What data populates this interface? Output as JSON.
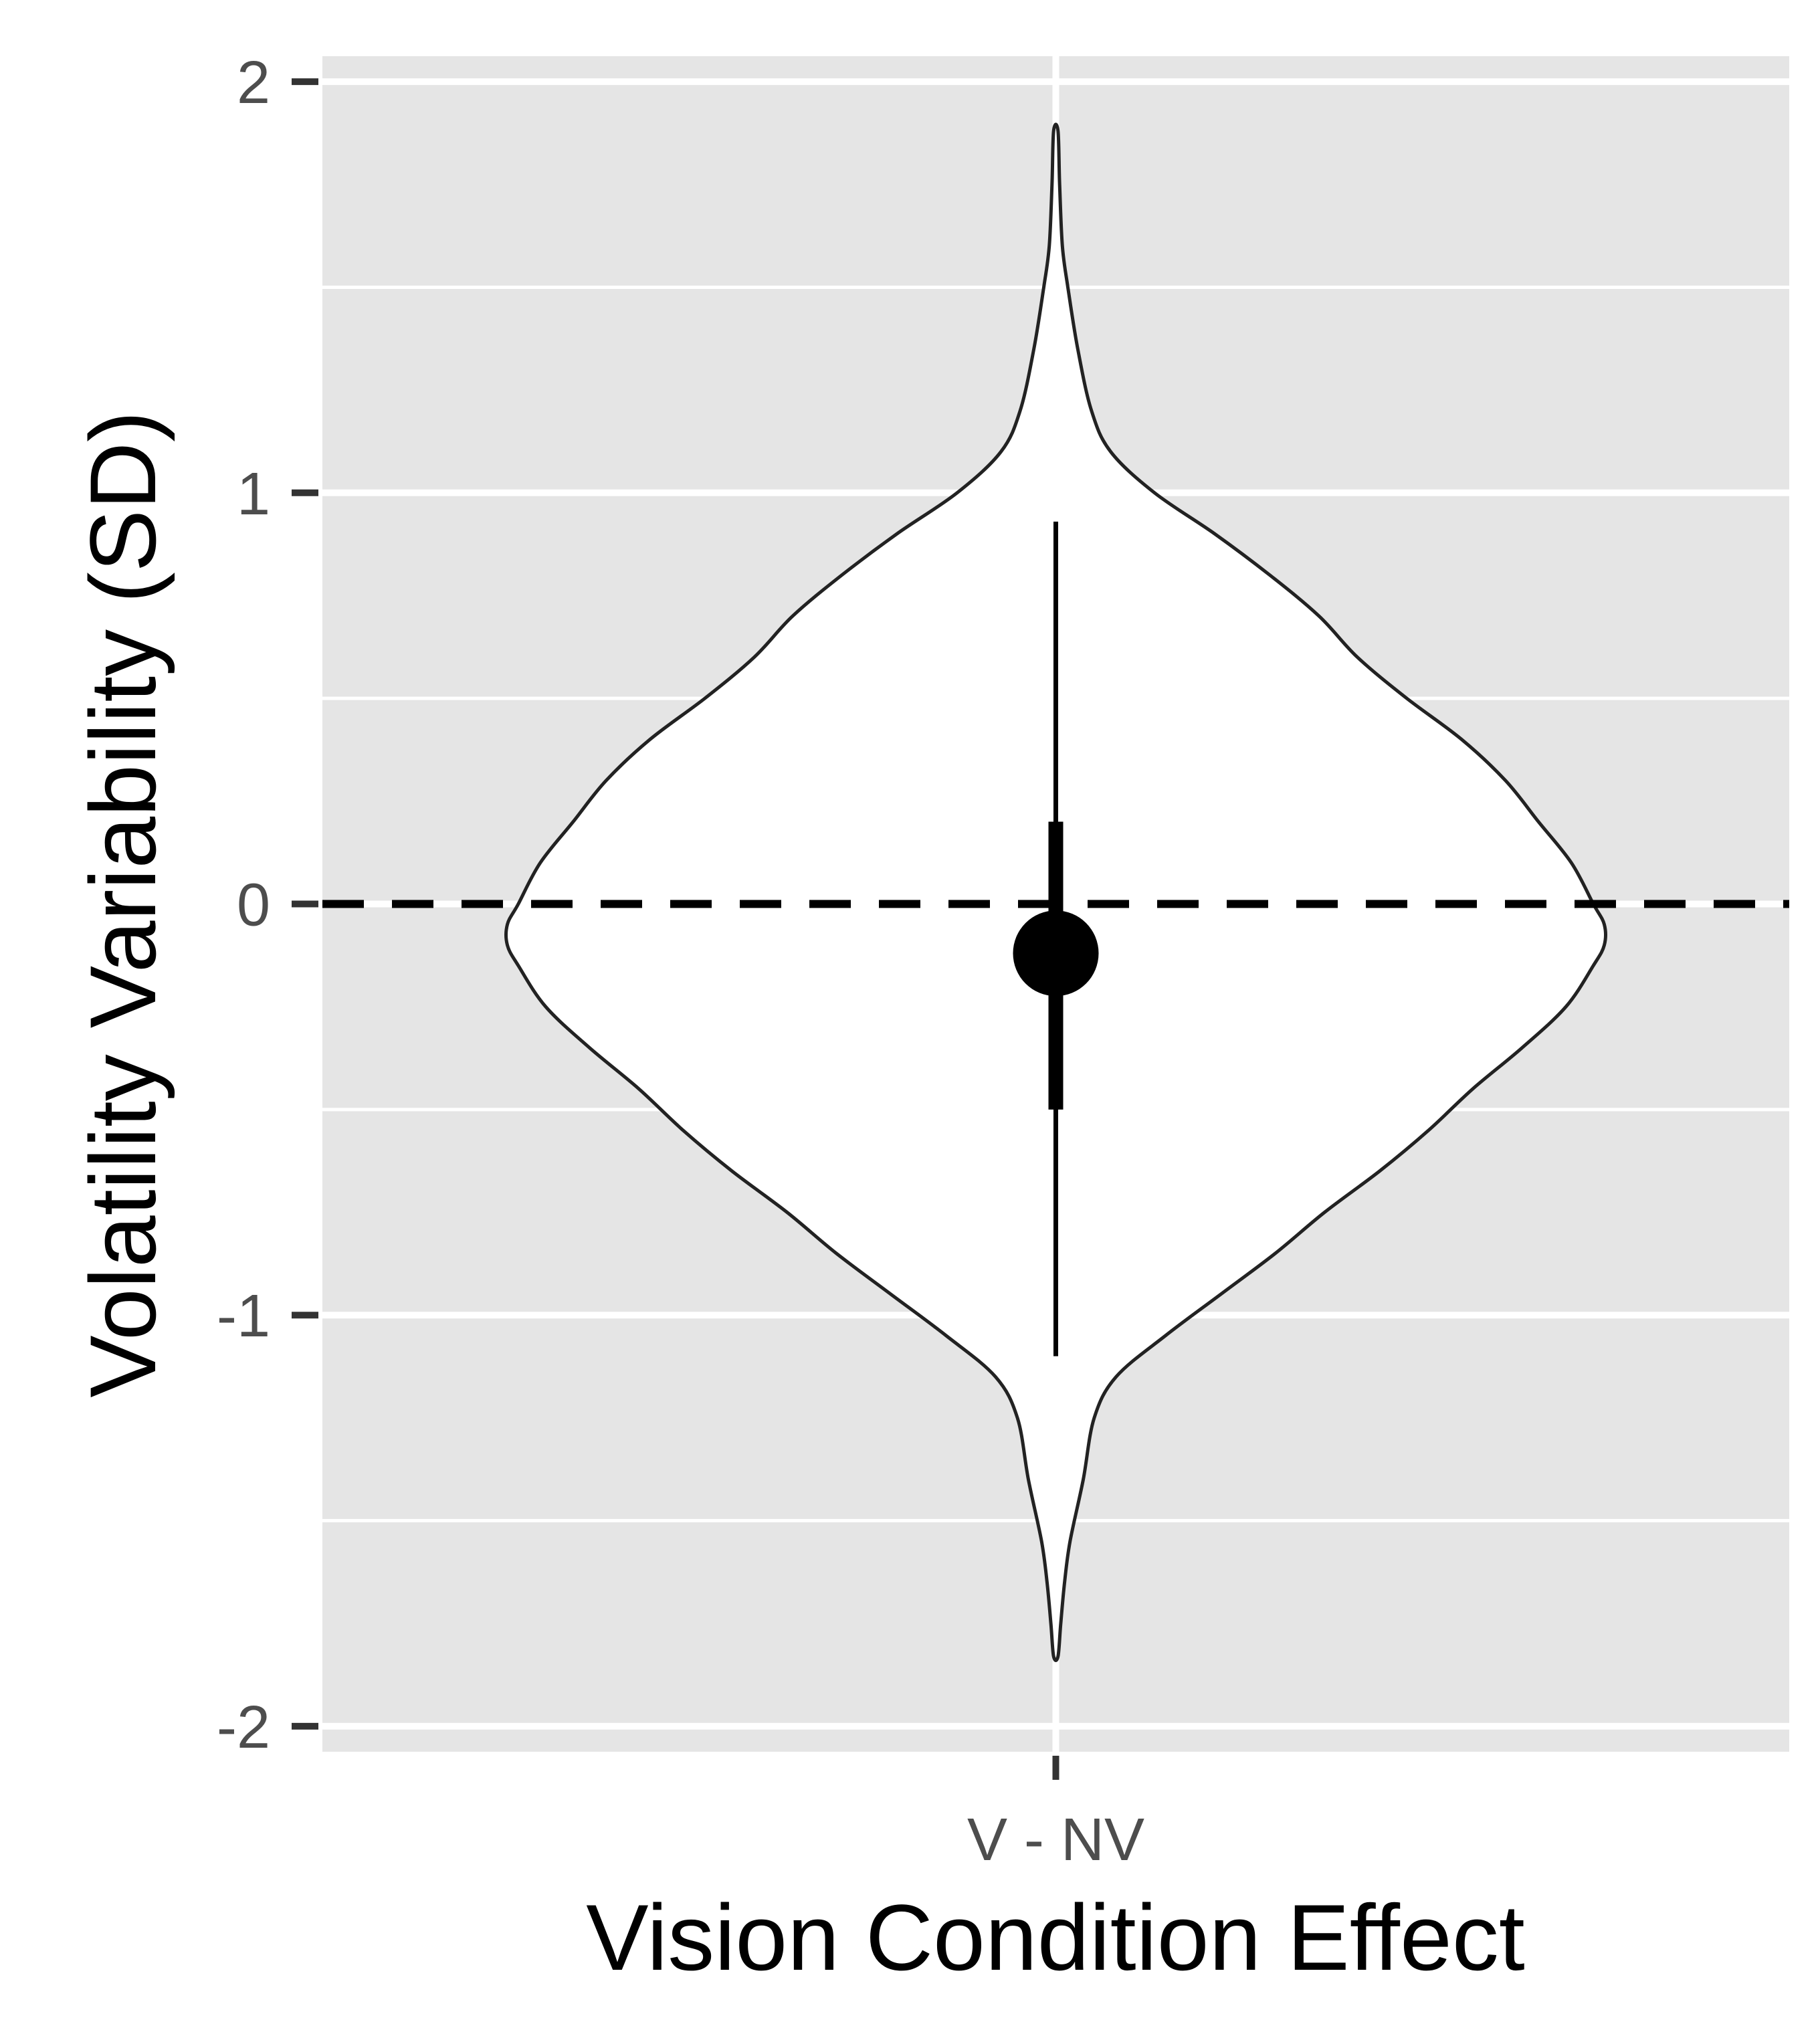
{
  "chart_data": {
    "type": "violin",
    "xlabel": "Vision Condition Effect",
    "ylabel": "Volatility Variability (SD)",
    "categories": [
      "V - NV"
    ],
    "ylim": [
      -2,
      2
    ],
    "y_ticks": [
      2,
      1,
      0,
      -1,
      -2
    ],
    "y_tick_labels": [
      "2",
      "1",
      "0",
      "-1",
      "-2"
    ],
    "grid": true,
    "legend": "none",
    "reference_line": {
      "y": 0,
      "style": "dashed"
    },
    "violin": {
      "category": "V - NV",
      "range": [
        -1.83,
        1.88
      ],
      "density": [
        [
          1.88,
          0.004
        ],
        [
          1.75,
          0.007
        ],
        [
          1.6,
          0.012
        ],
        [
          1.5,
          0.022
        ],
        [
          1.35,
          0.04
        ],
        [
          1.2,
          0.065
        ],
        [
          1.1,
          0.1
        ],
        [
          1.0,
          0.18
        ],
        [
          0.9,
          0.29
        ],
        [
          0.8,
          0.39
        ],
        [
          0.7,
          0.48
        ],
        [
          0.6,
          0.55
        ],
        [
          0.5,
          0.64
        ],
        [
          0.4,
          0.74
        ],
        [
          0.3,
          0.82
        ],
        [
          0.2,
          0.88
        ],
        [
          0.1,
          0.94
        ],
        [
          0.0,
          0.98
        ],
        [
          -0.05,
          1.0
        ],
        [
          -0.1,
          1.0
        ],
        [
          -0.15,
          0.98
        ],
        [
          -0.25,
          0.93
        ],
        [
          -0.35,
          0.85
        ],
        [
          -0.45,
          0.76
        ],
        [
          -0.55,
          0.68
        ],
        [
          -0.65,
          0.59
        ],
        [
          -0.75,
          0.49
        ],
        [
          -0.85,
          0.4
        ],
        [
          -0.95,
          0.3
        ],
        [
          -1.05,
          0.2
        ],
        [
          -1.15,
          0.11
        ],
        [
          -1.25,
          0.07
        ],
        [
          -1.4,
          0.05
        ],
        [
          -1.55,
          0.026
        ],
        [
          -1.65,
          0.016
        ],
        [
          -1.75,
          0.009
        ],
        [
          -1.83,
          0.004
        ]
      ]
    },
    "point_interval": {
      "point": -0.12,
      "inner_interval": [
        -0.5,
        0.2
      ],
      "outer_interval": [
        -1.1,
        0.93
      ]
    },
    "colors": {
      "panel": "#e5e5e5",
      "grid": "#ffffff",
      "violin_fill": "#ffffff",
      "violin_outline": "#222222",
      "interval": "#000000",
      "tick_text": "#4d4d4d"
    }
  }
}
